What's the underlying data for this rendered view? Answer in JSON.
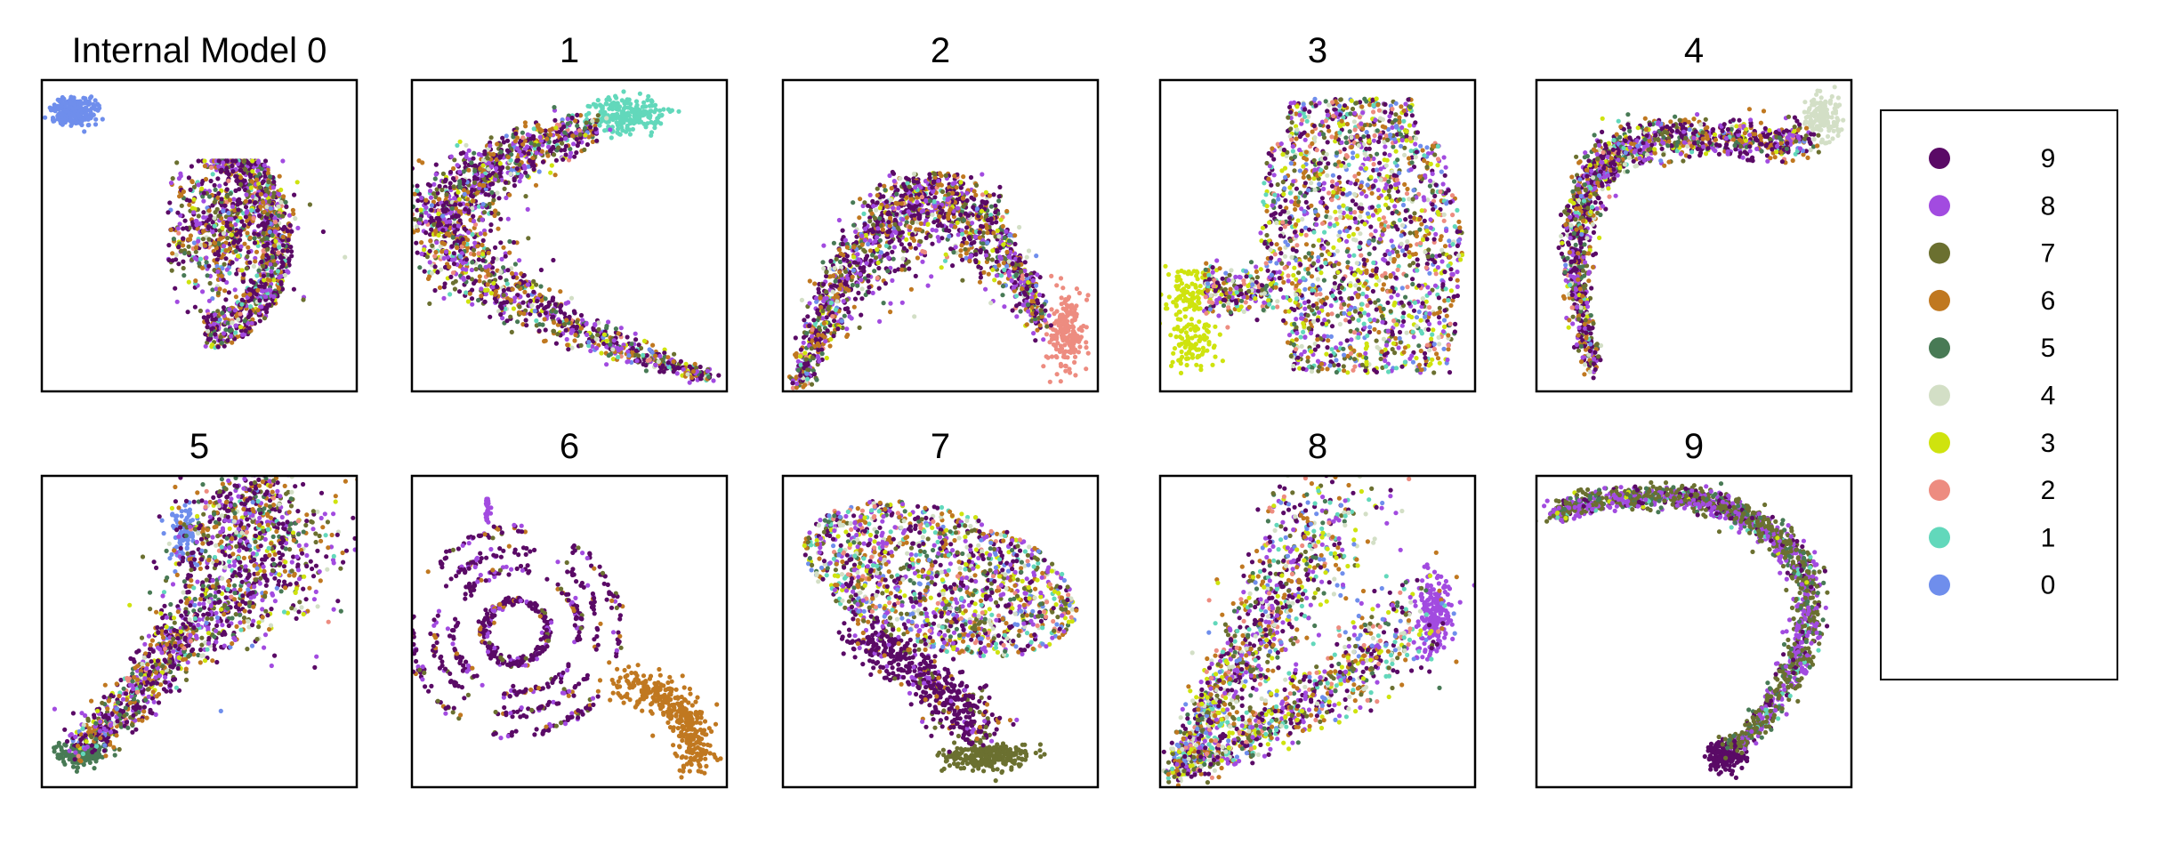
{
  "chart_data": {
    "type": "scatter",
    "panels": [
      {
        "title": "Internal Model 0",
        "shape": "m0"
      },
      {
        "title": "1",
        "shape": "m1"
      },
      {
        "title": "2",
        "shape": "m2"
      },
      {
        "title": "3",
        "shape": "m3"
      },
      {
        "title": "4",
        "shape": "m4"
      },
      {
        "title": "5",
        "shape": "m5"
      },
      {
        "title": "6",
        "shape": "m6"
      },
      {
        "title": "7",
        "shape": "m7"
      },
      {
        "title": "8",
        "shape": "m8"
      },
      {
        "title": "9",
        "shape": "m9"
      }
    ],
    "legend": {
      "position": "right",
      "entries": [
        {
          "label": "9",
          "color": "#5a0a66"
        },
        {
          "label": "8",
          "color": "#a24be0"
        },
        {
          "label": "7",
          "color": "#6b7030"
        },
        {
          "label": "6",
          "color": "#c07820"
        },
        {
          "label": "5",
          "color": "#487a55"
        },
        {
          "label": "4",
          "color": "#d3dfc6"
        },
        {
          "label": "3",
          "color": "#cfe30e"
        },
        {
          "label": "2",
          "color": "#ed8c80"
        },
        {
          "label": "1",
          "color": "#62d8bb"
        },
        {
          "label": "0",
          "color": "#6f8eec"
        }
      ]
    },
    "axes_visible": false,
    "grid": false
  }
}
